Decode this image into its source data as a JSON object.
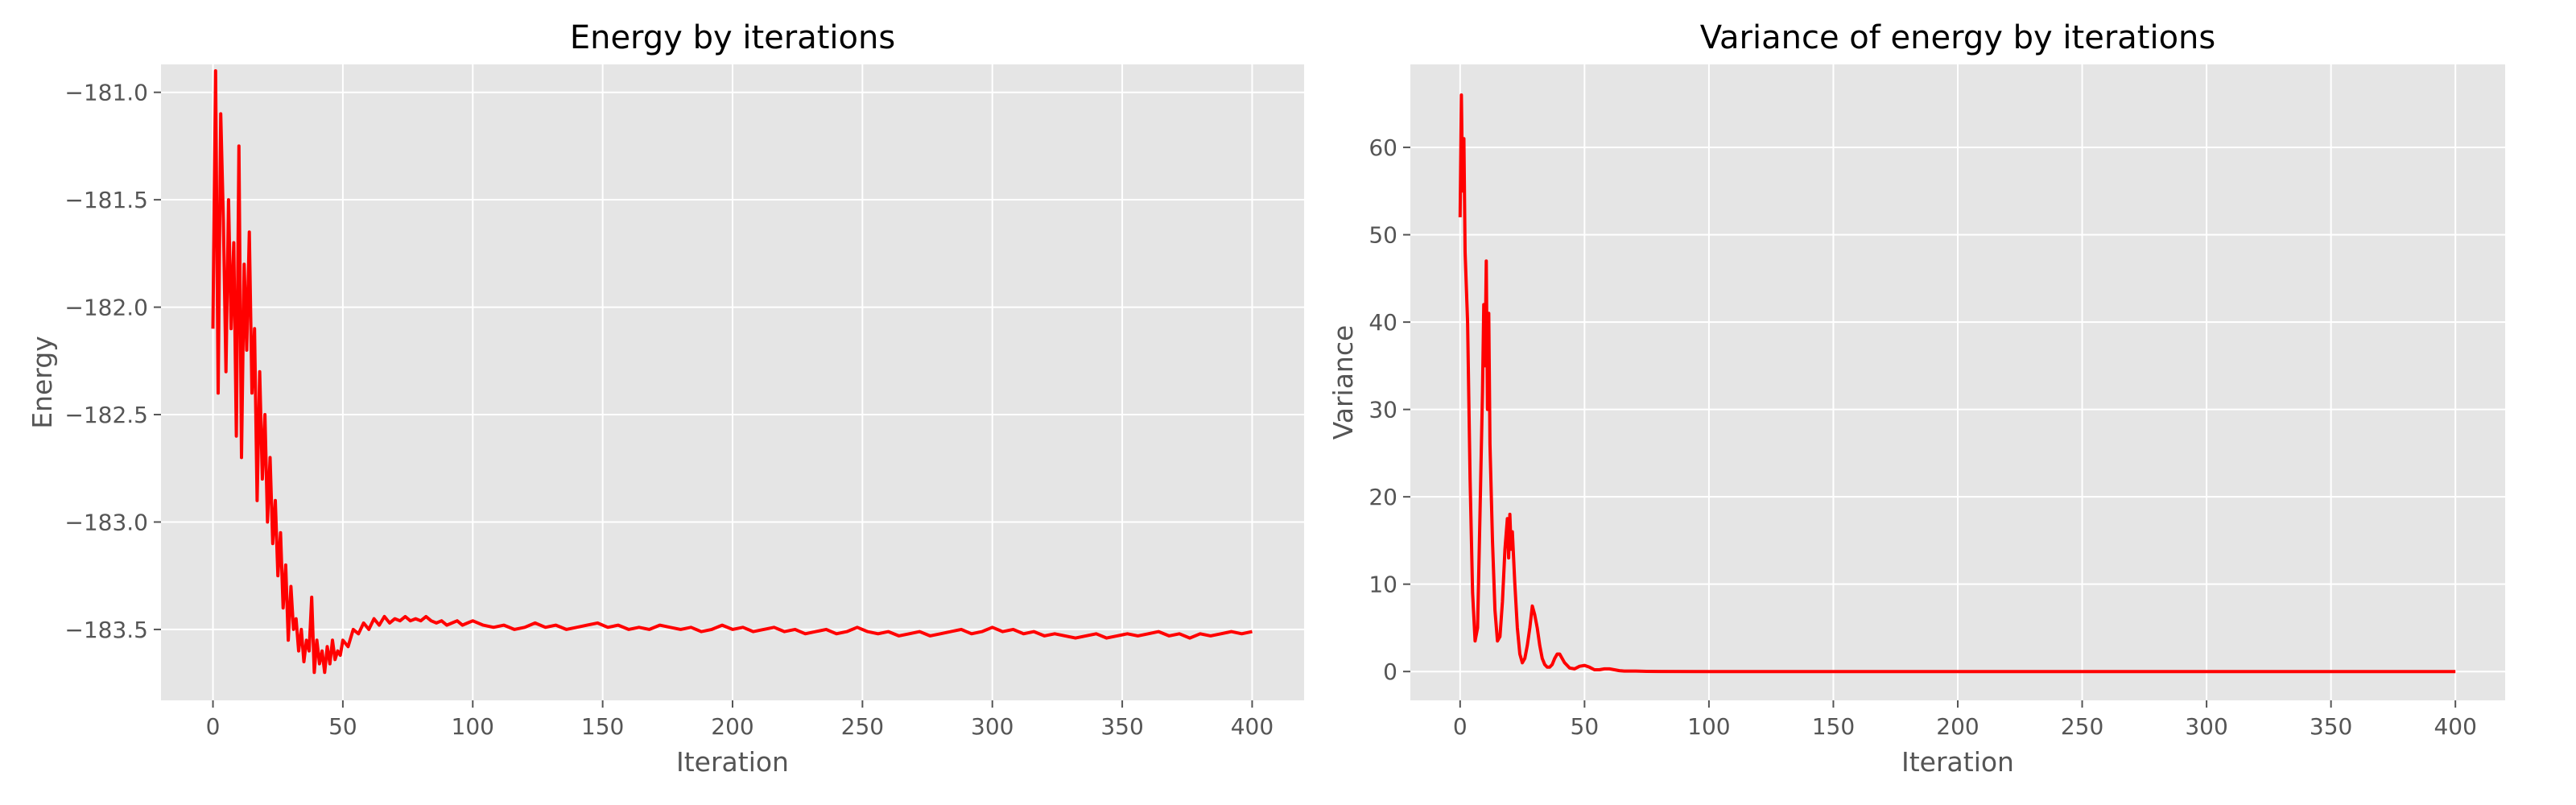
{
  "style": {
    "plot_background": "#e5e5e5",
    "grid_color": "#ffffff",
    "line_color": "#ff0000",
    "tick_color": "#555555"
  },
  "chart_data": [
    {
      "type": "line",
      "title": "Energy by iterations",
      "xlabel": "Iteration",
      "ylabel": "Energy",
      "xlim": [
        -20,
        420
      ],
      "ylim": [
        -183.83,
        -180.87
      ],
      "grid": true,
      "xticks": [
        0,
        50,
        100,
        150,
        200,
        250,
        300,
        350,
        400
      ],
      "xtick_labels": [
        "0",
        "50",
        "100",
        "150",
        "200",
        "250",
        "300",
        "350",
        "400"
      ],
      "yticks": [
        -183.5,
        -183.0,
        -182.5,
        -182.0,
        -181.5,
        -181.0
      ],
      "ytick_labels": [
        "−183.5",
        "−183.0",
        "−182.5",
        "−182.0",
        "−181.5",
        "−181.0"
      ],
      "series": [
        {
          "x": [
            0,
            1,
            2,
            3,
            4,
            5,
            6,
            7,
            8,
            9,
            10,
            11,
            12,
            13,
            14,
            15,
            16,
            17,
            18,
            19,
            20,
            21,
            22,
            23,
            24,
            25,
            26,
            27,
            28,
            29,
            30,
            31,
            32,
            33,
            34,
            35,
            36,
            37,
            38,
            39,
            40,
            41,
            42,
            43,
            44,
            45,
            46,
            47,
            48,
            49,
            50,
            52,
            54,
            56,
            58,
            60,
            62,
            64,
            66,
            68,
            70,
            72,
            74,
            76,
            78,
            80,
            82,
            84,
            86,
            88,
            90,
            92,
            94,
            96,
            98,
            100,
            104,
            108,
            112,
            116,
            120,
            124,
            128,
            132,
            136,
            140,
            144,
            148,
            152,
            156,
            160,
            164,
            168,
            172,
            176,
            180,
            184,
            188,
            192,
            196,
            200,
            204,
            208,
            212,
            216,
            220,
            224,
            228,
            232,
            236,
            240,
            244,
            248,
            252,
            256,
            260,
            264,
            268,
            272,
            276,
            280,
            284,
            288,
            292,
            296,
            300,
            304,
            308,
            312,
            316,
            320,
            324,
            328,
            332,
            336,
            340,
            344,
            348,
            352,
            356,
            360,
            364,
            368,
            372,
            376,
            380,
            384,
            388,
            392,
            396,
            400
          ],
          "y": [
            -182.1,
            -180.9,
            -182.4,
            -181.1,
            -181.6,
            -182.3,
            -181.5,
            -182.1,
            -181.7,
            -182.6,
            -181.25,
            -182.7,
            -181.8,
            -182.2,
            -181.65,
            -182.4,
            -182.1,
            -182.9,
            -182.3,
            -182.8,
            -182.5,
            -183.0,
            -182.7,
            -183.1,
            -182.9,
            -183.25,
            -183.05,
            -183.4,
            -183.2,
            -183.55,
            -183.3,
            -183.5,
            -183.45,
            -183.6,
            -183.5,
            -183.65,
            -183.55,
            -183.6,
            -183.35,
            -183.7,
            -183.55,
            -183.66,
            -183.6,
            -183.7,
            -183.58,
            -183.66,
            -183.55,
            -183.64,
            -183.6,
            -183.62,
            -183.55,
            -183.58,
            -183.5,
            -183.52,
            -183.47,
            -183.5,
            -183.45,
            -183.48,
            -183.44,
            -183.47,
            -183.45,
            -183.46,
            -183.44,
            -183.46,
            -183.45,
            -183.46,
            -183.44,
            -183.46,
            -183.47,
            -183.46,
            -183.48,
            -183.47,
            -183.46,
            -183.48,
            -183.47,
            -183.46,
            -183.48,
            -183.49,
            -183.48,
            -183.5,
            -183.49,
            -183.47,
            -183.49,
            -183.48,
            -183.5,
            -183.49,
            -183.48,
            -183.47,
            -183.49,
            -183.48,
            -183.5,
            -183.49,
            -183.5,
            -183.48,
            -183.49,
            -183.5,
            -183.49,
            -183.51,
            -183.5,
            -183.48,
            -183.5,
            -183.49,
            -183.51,
            -183.5,
            -183.49,
            -183.51,
            -183.5,
            -183.52,
            -183.51,
            -183.5,
            -183.52,
            -183.51,
            -183.49,
            -183.51,
            -183.52,
            -183.51,
            -183.53,
            -183.52,
            -183.51,
            -183.53,
            -183.52,
            -183.51,
            -183.5,
            -183.52,
            -183.51,
            -183.49,
            -183.51,
            -183.5,
            -183.52,
            -183.51,
            -183.53,
            -183.52,
            -183.53,
            -183.54,
            -183.53,
            -183.52,
            -183.54,
            -183.53,
            -183.52,
            -183.53,
            -183.52,
            -183.51,
            -183.53,
            -183.52,
            -183.54,
            -183.52,
            -183.53,
            -183.52,
            -183.51,
            -183.52,
            -183.51
          ]
        }
      ]
    },
    {
      "type": "line",
      "title": "Variance of energy by iterations",
      "xlabel": "Iteration",
      "ylabel": "Variance",
      "xlim": [
        -20,
        420
      ],
      "ylim": [
        -3.3,
        69.5
      ],
      "grid": true,
      "xticks": [
        0,
        50,
        100,
        150,
        200,
        250,
        300,
        350,
        400
      ],
      "xtick_labels": [
        "0",
        "50",
        "100",
        "150",
        "200",
        "250",
        "300",
        "350",
        "400"
      ],
      "yticks": [
        0,
        10,
        20,
        30,
        40,
        50,
        60
      ],
      "ytick_labels": [
        "0",
        "10",
        "20",
        "30",
        "40",
        "50",
        "60"
      ],
      "series": [
        {
          "x": [
            0,
            0.5,
            1,
            1.5,
            2,
            3,
            4,
            5,
            6,
            7,
            8,
            9,
            9.5,
            10,
            10.5,
            11,
            11.5,
            12,
            13,
            14,
            15,
            16,
            17,
            18,
            19,
            19.5,
            20,
            20.5,
            21,
            22,
            23,
            24,
            25,
            26,
            27,
            28,
            29,
            30,
            31,
            32,
            33,
            34,
            35,
            36,
            37,
            38,
            39,
            40,
            42,
            44,
            46,
            48,
            50,
            52,
            54,
            56,
            58,
            60,
            62,
            64,
            66,
            70,
            75,
            80,
            100,
            150,
            200,
            250,
            300,
            350,
            400
          ],
          "y": [
            52,
            66,
            55,
            61,
            48,
            40,
            22,
            9,
            3.5,
            5,
            18,
            32,
            42,
            35,
            47,
            30,
            41,
            26,
            15,
            7,
            3.5,
            4,
            8,
            14,
            17.5,
            13,
            18,
            14,
            16,
            10,
            5,
            2,
            1,
            1.5,
            3,
            5,
            7.5,
            6.5,
            5,
            3,
            1.5,
            0.8,
            0.5,
            0.5,
            0.8,
            1.5,
            2,
            2,
            1,
            0.4,
            0.3,
            0.6,
            0.7,
            0.5,
            0.2,
            0.2,
            0.3,
            0.3,
            0.2,
            0.1,
            0.05,
            0.05,
            0.02,
            0.01,
            0,
            0,
            0,
            0,
            0,
            0,
            0
          ]
        }
      ]
    }
  ]
}
